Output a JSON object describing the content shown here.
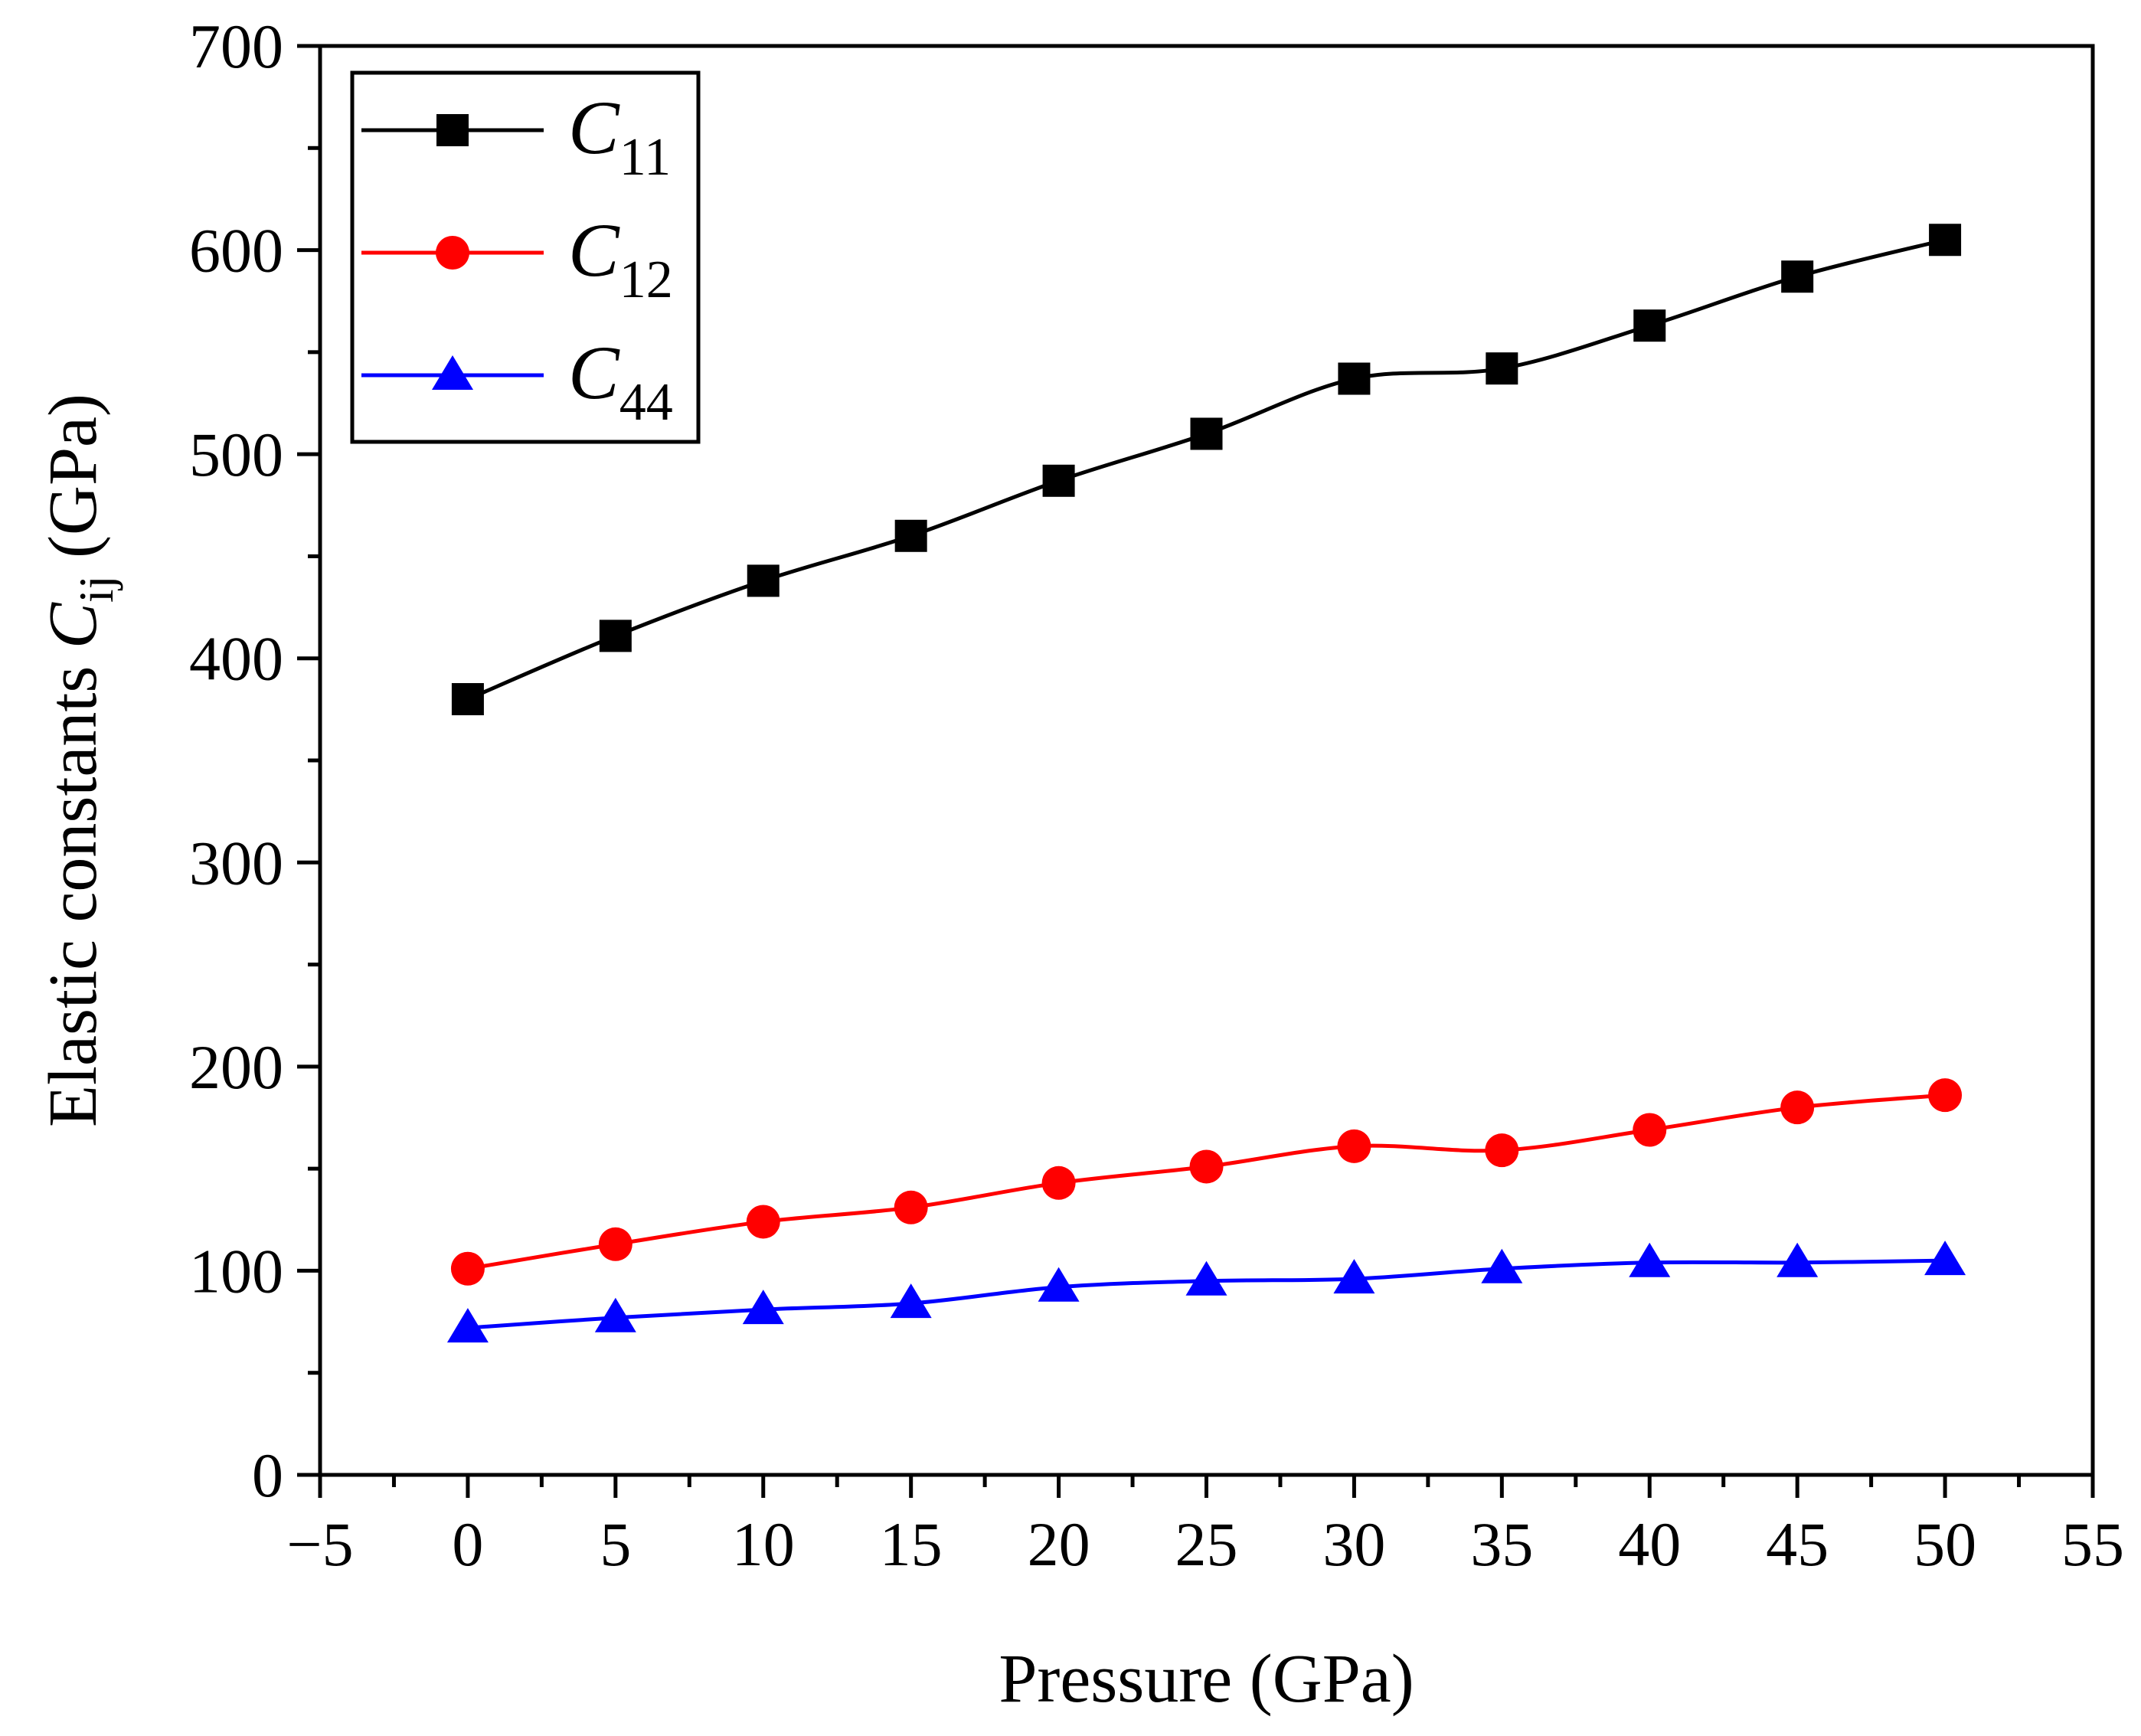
{
  "chart_data": {
    "type": "line",
    "title": "",
    "xlabel": "Pressure (GPa)",
    "ylabel": {
      "prefix": "Elastic constants ",
      "symbol": "C",
      "subscript": "ij",
      "suffix": " (GPa)"
    },
    "xlim": [
      -5,
      55
    ],
    "ylim": [
      0,
      700
    ],
    "xticks": [
      -5,
      0,
      5,
      10,
      15,
      20,
      25,
      30,
      35,
      40,
      45,
      50,
      55
    ],
    "xtick_labels": [
      "−5",
      "0",
      "5",
      "10",
      "15",
      "20",
      "25",
      "30",
      "35",
      "40",
      "45",
      "50",
      "55"
    ],
    "yticks": [
      0,
      100,
      200,
      300,
      400,
      500,
      600,
      700
    ],
    "ytick_labels": [
      "0",
      "100",
      "200",
      "300",
      "400",
      "500",
      "600",
      "700"
    ],
    "grid": false,
    "legend_position": "top-left",
    "x": [
      0,
      5,
      10,
      15,
      20,
      25,
      30,
      35,
      40,
      45,
      50
    ],
    "series": [
      {
        "name": "C11",
        "symbol": "C",
        "subscript": "11",
        "color": "#000000",
        "marker": "square",
        "values": [
          380,
          411,
          438,
          460,
          487,
          510,
          537,
          542,
          563,
          587,
          605
        ]
      },
      {
        "name": "C12",
        "symbol": "C",
        "subscript": "12",
        "color": "#ff0000",
        "marker": "circle",
        "values": [
          101,
          113,
          124,
          131,
          143,
          151,
          161,
          159,
          169,
          180,
          186
        ]
      },
      {
        "name": "C44",
        "symbol": "C",
        "subscript": "44",
        "color": "#0000ff",
        "marker": "triangle",
        "values": [
          72,
          77,
          81,
          84,
          92,
          95,
          96,
          101,
          104,
          104,
          105
        ]
      }
    ]
  }
}
